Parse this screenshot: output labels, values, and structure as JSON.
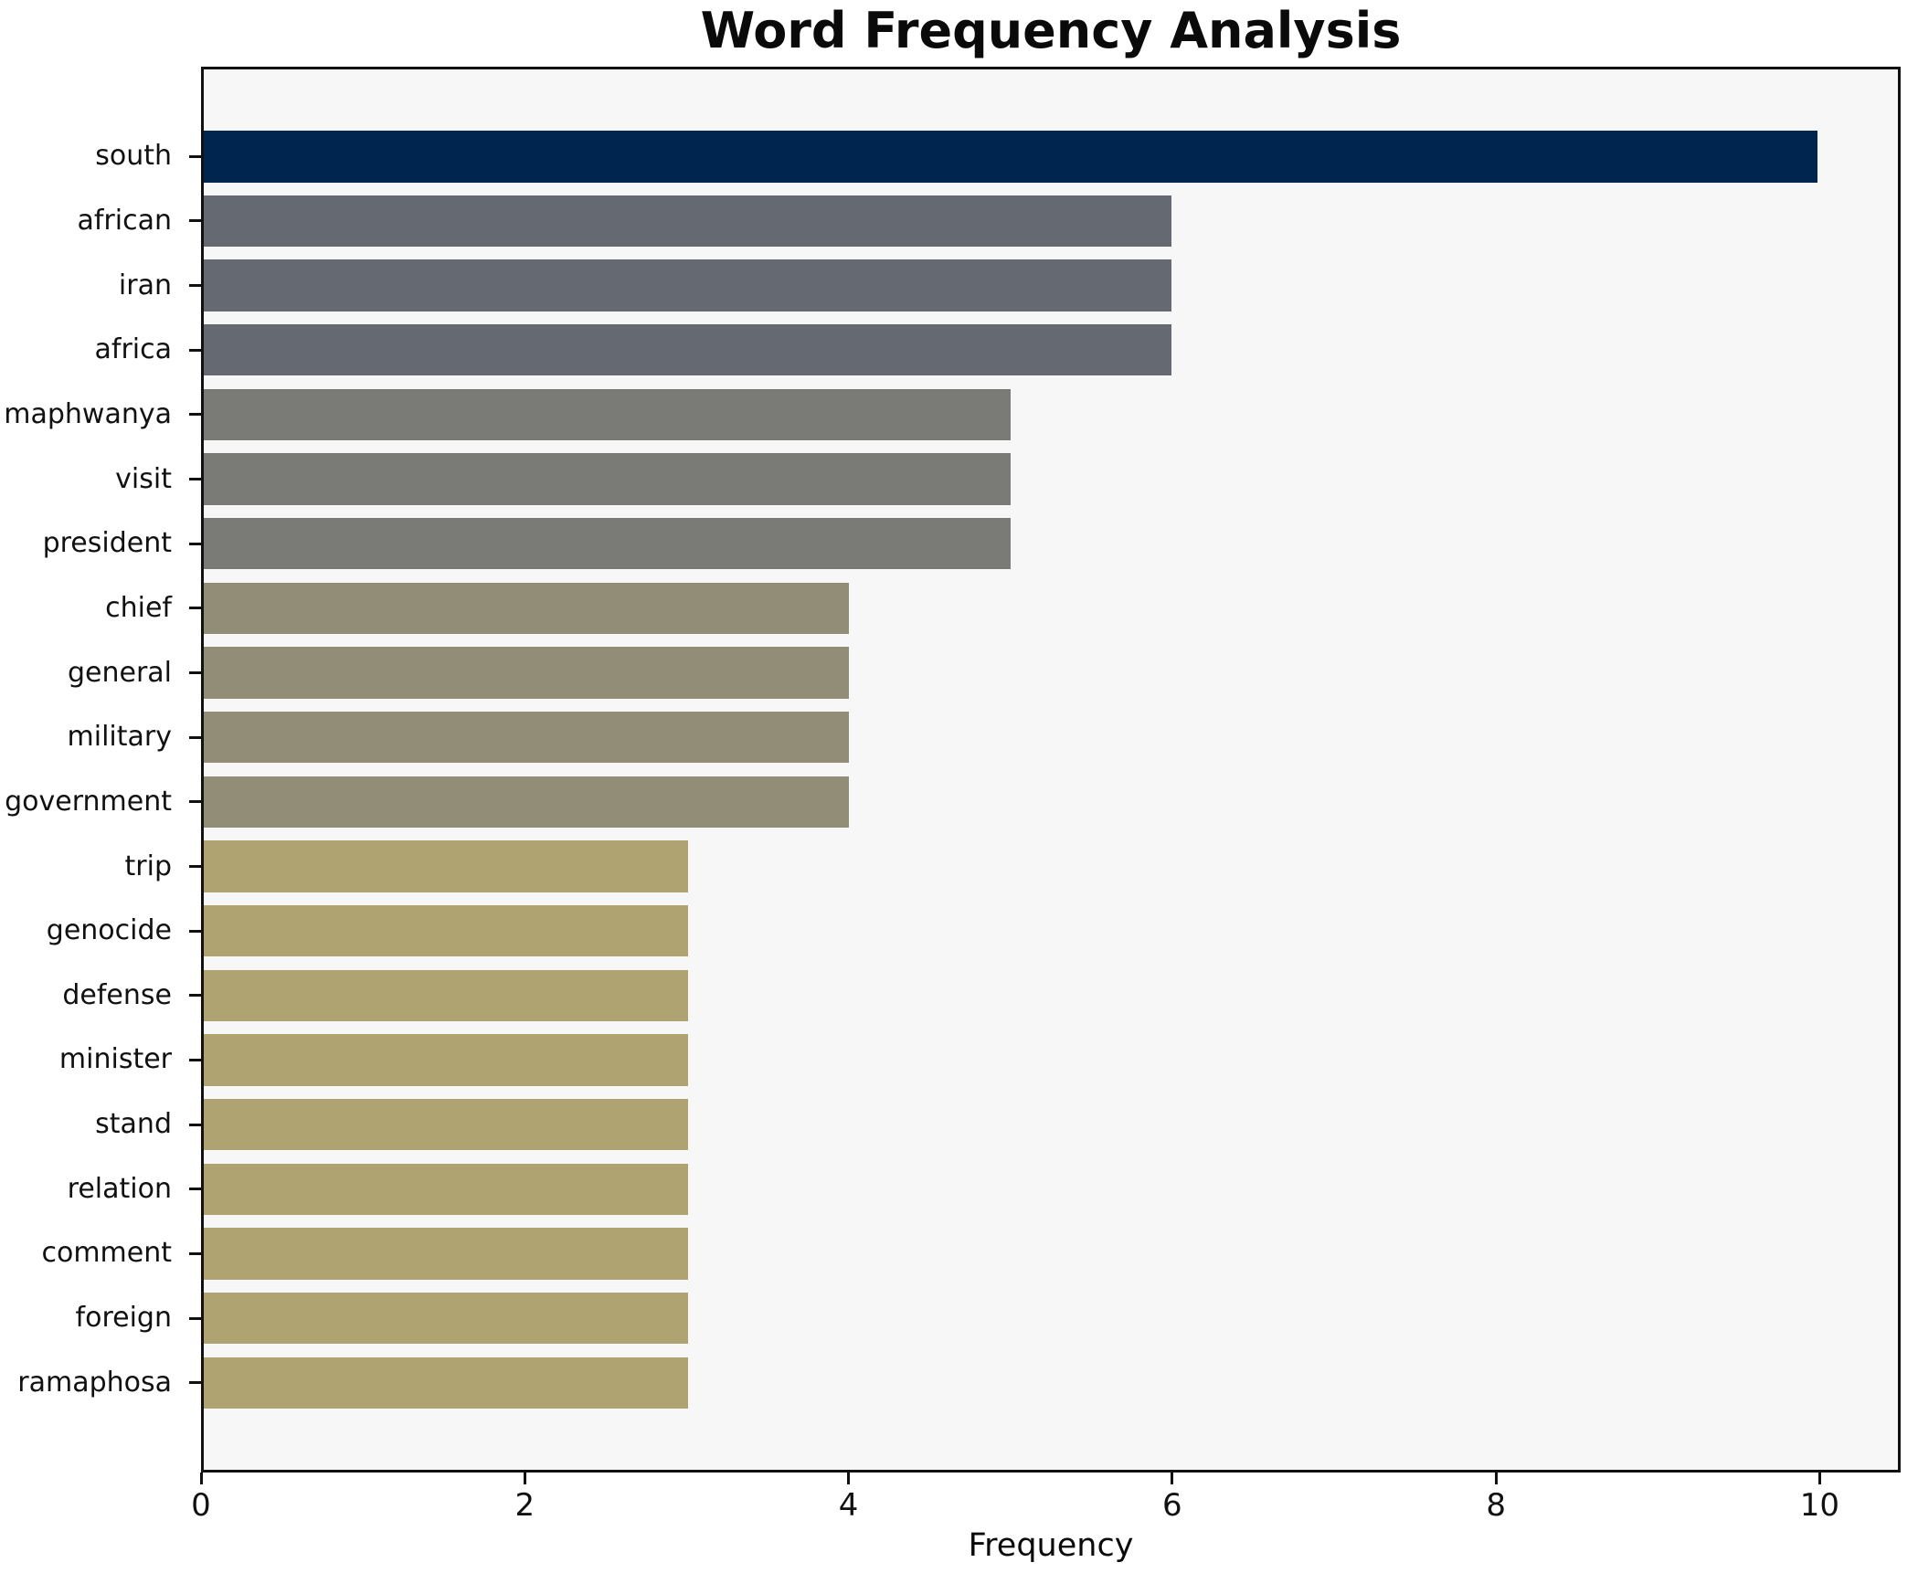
{
  "chart_data": {
    "type": "bar",
    "orientation": "horizontal",
    "title": "Word Frequency Analysis",
    "xlabel": "Frequency",
    "ylabel": "",
    "xlim": [
      0,
      10.5
    ],
    "xticks": [
      "0",
      "2",
      "4",
      "6",
      "8",
      "10"
    ],
    "xtick_values": [
      0,
      2,
      4,
      6,
      8,
      10
    ],
    "grid": false,
    "legend_position": "none",
    "categories": [
      "south",
      "african",
      "iran",
      "africa",
      "maphwanya",
      "visit",
      "president",
      "chief",
      "general",
      "military",
      "government",
      "trip",
      "genocide",
      "defense",
      "minister",
      "stand",
      "relation",
      "comment",
      "foreign",
      "ramaphosa"
    ],
    "values": [
      10,
      6,
      6,
      6,
      5,
      5,
      5,
      4,
      4,
      4,
      4,
      3,
      3,
      3,
      3,
      3,
      3,
      3,
      3,
      3
    ],
    "bar_colors": [
      "#00254E",
      "#656A72",
      "#656A72",
      "#656A72",
      "#7A7A76",
      "#7A7A76",
      "#7A7A76",
      "#928D76",
      "#928D76",
      "#928D76",
      "#928D76",
      "#AEA371",
      "#AEA371",
      "#AEA371",
      "#AEA371",
      "#AEA371",
      "#AEA371",
      "#AEA371",
      "#AEA371",
      "#AEA371"
    ],
    "colors": {
      "plot_background": "#F7F7F8",
      "figure_background": "#FFFFFF",
      "spine": "#111111",
      "text": "#111111"
    }
  }
}
